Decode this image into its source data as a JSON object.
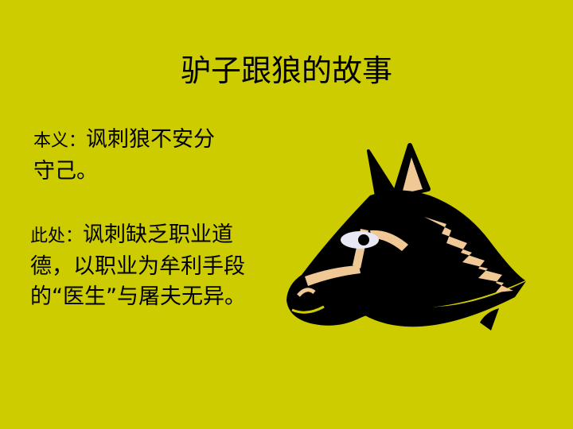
{
  "slide": {
    "title": "驴子跟狼的故事",
    "p1": {
      "label": "本义：",
      "text": "讽刺狼不安分守己。"
    },
    "p2": {
      "label": "此处：",
      "text": "讽刺缺乏职业道德，以职业为牟利手段的“医生”与屠夫无异。"
    },
    "colors": {
      "background": "#cccc00",
      "mane": "#f0c896"
    }
  }
}
